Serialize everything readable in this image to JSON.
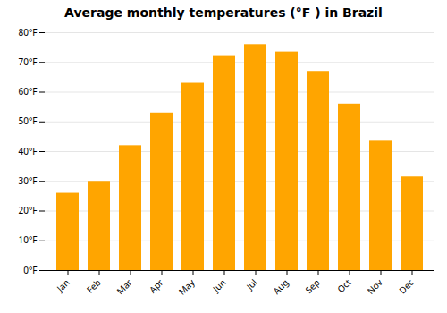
{
  "chart_data": {
    "type": "bar",
    "title": "Average monthly temperatures (°F ) in Brazil",
    "categories": [
      "Jan",
      "Feb",
      "Mar",
      "Apr",
      "May",
      "Jun",
      "Jul",
      "Aug",
      "Sep",
      "Oct",
      "Nov",
      "Dec"
    ],
    "values": [
      26,
      30,
      42,
      53,
      63,
      72,
      76,
      73.5,
      67,
      56,
      43.5,
      31.5
    ],
    "color": "#FFA500",
    "ylim": [
      0,
      80
    ],
    "yticks": [
      {
        "value": 0,
        "label": "0°F"
      },
      {
        "value": 10,
        "label": "10°F"
      },
      {
        "value": 20,
        "label": "20°F"
      },
      {
        "value": 30,
        "label": "30°F"
      },
      {
        "value": 40,
        "label": "40°F"
      },
      {
        "value": 50,
        "label": "50°F"
      },
      {
        "value": 60,
        "label": "60°F"
      },
      {
        "value": 70,
        "label": "70°F"
      },
      {
        "value": 80,
        "label": "80°F"
      }
    ],
    "grid": true
  }
}
